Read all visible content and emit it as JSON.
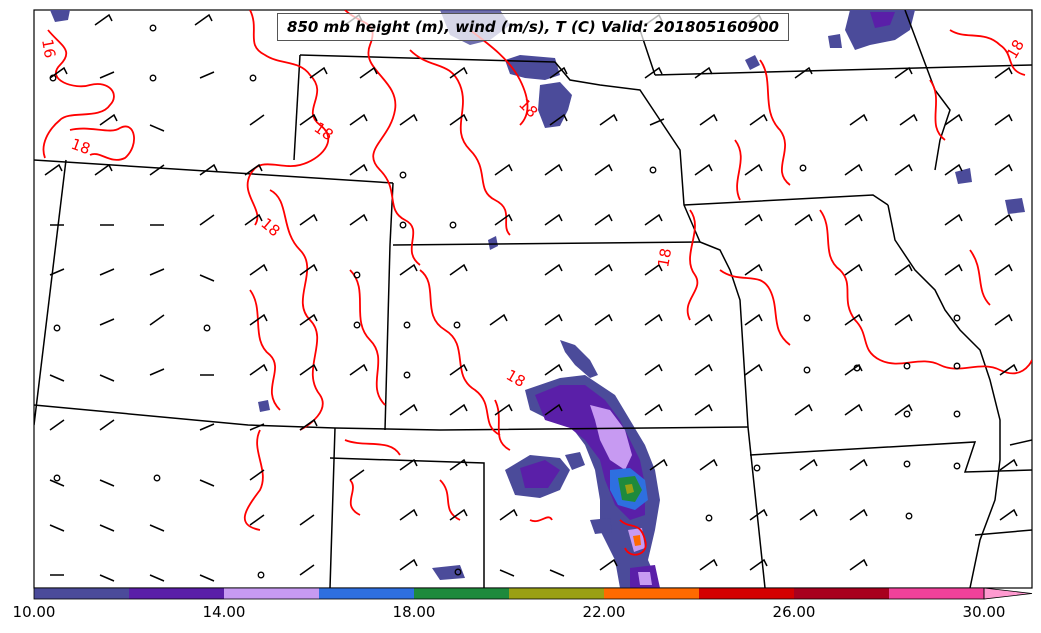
{
  "title": "850 mb height (m), wind (m/s), T (C) Valid: 201805160900",
  "contour_labels": [
    "18",
    "18",
    "18",
    "18",
    "18",
    "18",
    "18",
    "16",
    "18"
  ],
  "colorbar": {
    "tick_labels": [
      "10.00",
      "14.00",
      "18.00",
      "22.00",
      "26.00",
      "30.00"
    ],
    "colors": [
      "#4b4b9a",
      "#5a1fa8",
      "#c79af2",
      "#2e6fe0",
      "#1e8a3c",
      "#9aa014",
      "#ff6a00",
      "#d40000",
      "#a8001e",
      "#f0419a",
      "#ff9ad0"
    ],
    "extend": "max"
  },
  "colors": {
    "isotherm": "#ff0000",
    "borders": "#000000",
    "wind_barbs": "#000000"
  },
  "legend": "temperature (C) color scale"
}
